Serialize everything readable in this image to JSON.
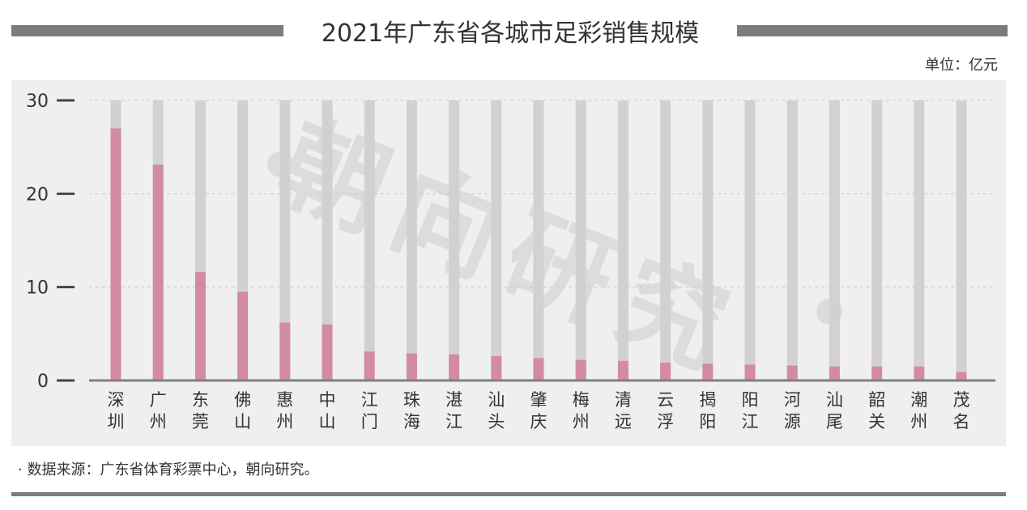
{
  "chart_data": {
    "type": "bar",
    "title": "2021年广东省各城市足彩销售规模",
    "unit_label": "单位：亿元",
    "xlabel": "",
    "ylabel": "",
    "ylim": [
      0,
      30
    ],
    "yticks": [
      0,
      10,
      20,
      30
    ],
    "grid": true,
    "categories": [
      "深圳",
      "广州",
      "东莞",
      "佛山",
      "惠州",
      "中山",
      "江门",
      "珠海",
      "湛江",
      "汕头",
      "肇庆",
      "梅州",
      "清远",
      "云浮",
      "揭阳",
      "阳江",
      "河源",
      "汕尾",
      "韶关",
      "潮州",
      "茂名"
    ],
    "values": [
      27.0,
      23.1,
      11.6,
      9.5,
      6.2,
      6.0,
      3.1,
      2.9,
      2.8,
      2.6,
      2.4,
      2.2,
      2.1,
      1.9,
      1.8,
      1.7,
      1.6,
      1.5,
      1.5,
      1.5,
      0.9
    ],
    "colors": {
      "bar": "#d38ba2",
      "track": "#d3d0d2",
      "axis": "#808080",
      "grid": "#c8c8c8"
    }
  },
  "source": "·  数据来源：广东省体育彩票中心，朝向研究。",
  "watermark": "朝向研究"
}
